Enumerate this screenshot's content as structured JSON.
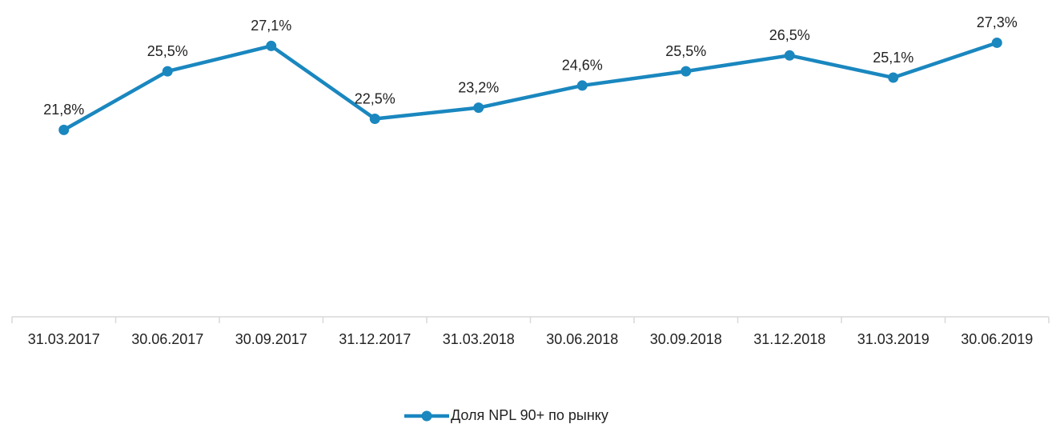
{
  "chart_data": {
    "type": "line",
    "categories": [
      "31.03.2017",
      "30.06.2017",
      "30.09.2017",
      "31.12.2017",
      "31.03.2018",
      "30.06.2018",
      "30.09.2018",
      "31.12.2018",
      "31.03.2019",
      "30.06.2019"
    ],
    "series": [
      {
        "name": "Доля NPL 90+ по рынку",
        "color": "#1a87bf",
        "values": [
          21.8,
          25.5,
          27.1,
          22.5,
          23.2,
          24.6,
          25.5,
          26.5,
          25.1,
          27.3
        ],
        "value_labels": [
          "21,8%",
          "25,5%",
          "27,1%",
          "22,5%",
          "23,2%",
          "24,6%",
          "25,5%",
          "26,5%",
          "25,1%",
          "27,3%"
        ]
      }
    ],
    "ylim": [
      10,
      30
    ],
    "legend": "bottom"
  }
}
